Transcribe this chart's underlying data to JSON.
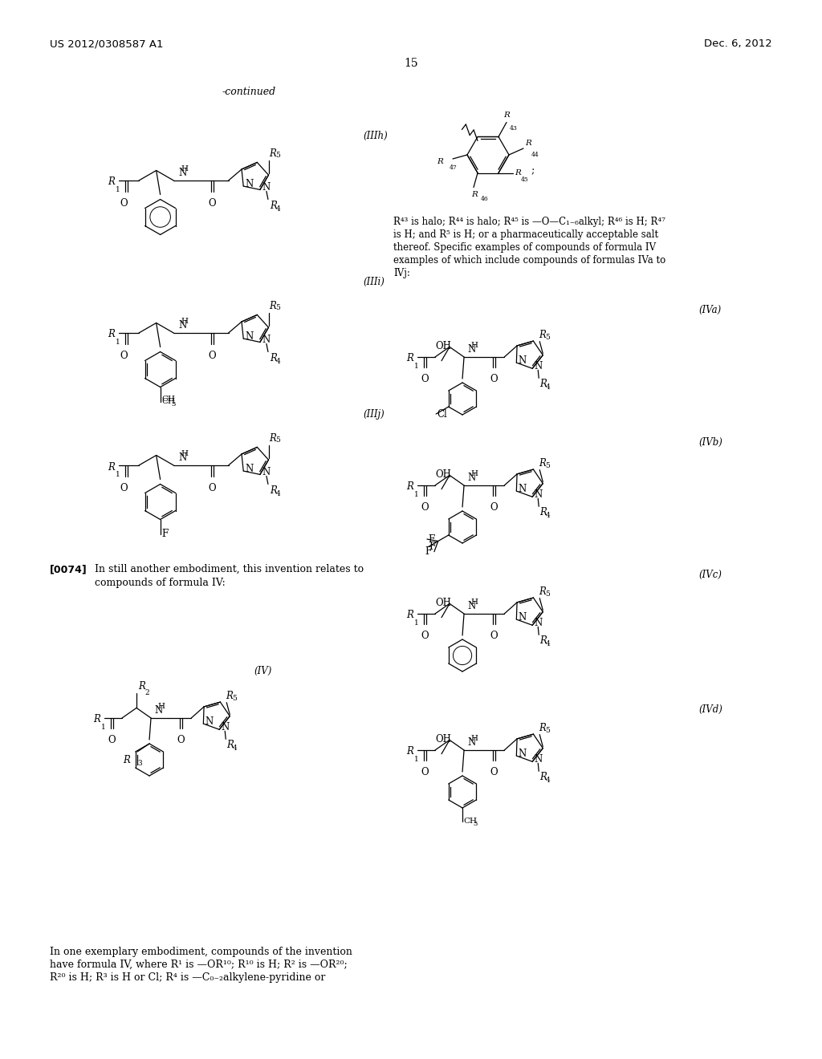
{
  "page_number": "15",
  "patent_number": "US 2012/0308587 A1",
  "patent_date": "Dec. 6, 2012",
  "bg": "#ffffff"
}
